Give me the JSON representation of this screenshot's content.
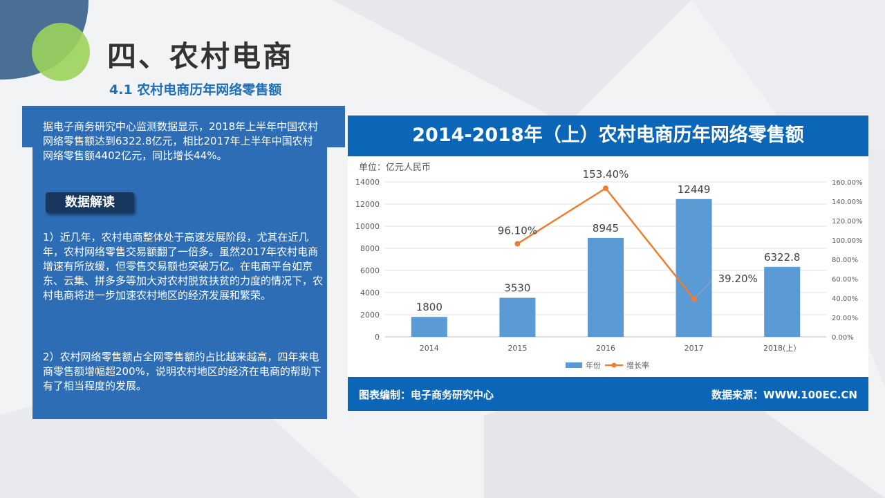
{
  "header": {
    "title": "四、农村电商",
    "subtitle": "4.1 农村电商历年网络零售额"
  },
  "text_panel": {
    "intro": "据电子商务研究中心监测数据显示，2018年上半年中国农村网络零售额达到6322.8亿元，相比2017年上半年中国农村网络零售额4402亿元，同比增长44%。",
    "button_label": "数据解读",
    "point1": "1）近几年，农村电商整体处于高速发展阶段，尤其在近几年，农村网络零售交易额翻了一倍多。虽然2017年农村电商增速有所放缓，但零售交易额也突破万亿。在电商平台如京东、云集、拼多多等加大对农村脱贫扶贫的力度的情况下，农村电商将进一步加速农村地区的经济发展和繁荣。",
    "point2": "2）农村网络零售额占全网零售额的占比越来越高，四年来电商零售额增幅超200%，说明农村地区的经济在电商的帮助下有了相当程度的发展。"
  },
  "chart_box": {
    "header": "2014-2018年（上）农村电商历年网络零售额",
    "unit": "单位：亿元人民币",
    "footer_left": "图表编制：电子商务研究中心",
    "footer_right": "数据来源：WWW.100EC.CN"
  },
  "colors": {
    "bar": "#5b9bd5",
    "line": "#ed7d31",
    "panel": "#2d6db5",
    "banner": "#0c66b7",
    "button": "#17375e",
    "title_blue": "#1f6fb8"
  },
  "chart_data": {
    "type": "bar",
    "categories": [
      "2014",
      "2015",
      "2016",
      "2017",
      "2018(上）"
    ],
    "series": [
      {
        "name": "年份",
        "type": "bar",
        "axis": "left",
        "values": [
          1800,
          3530,
          8945,
          12449,
          6322.8
        ],
        "labels": [
          "1800",
          "3530",
          "8945",
          "12449",
          "6322.8"
        ]
      },
      {
        "name": "增长率",
        "type": "line",
        "axis": "right",
        "values": [
          null,
          96.1,
          153.4,
          39.2,
          null
        ],
        "labels": [
          "",
          "96.10%",
          "153.40%",
          "39.20%",
          ""
        ]
      }
    ],
    "y_left": {
      "min": 0,
      "max": 14000,
      "step": 2000,
      "ticks": [
        "0",
        "2000",
        "4000",
        "6000",
        "8000",
        "10000",
        "12000",
        "14000"
      ]
    },
    "y_right": {
      "min": 0,
      "max": 160,
      "step": 20,
      "ticks": [
        "0.00%",
        "20.00%",
        "40.00%",
        "60.00%",
        "80.00%",
        "100.00%",
        "120.00%",
        "140.00%",
        "160.00%"
      ]
    },
    "grid": true,
    "legend": {
      "position": "bottom",
      "items": [
        "年份",
        "增长率"
      ]
    }
  }
}
